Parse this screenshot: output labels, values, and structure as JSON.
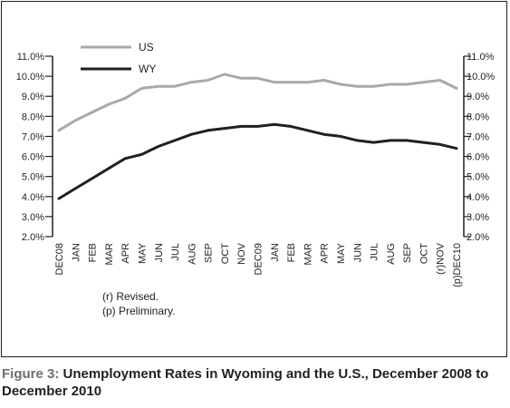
{
  "chart_data": {
    "type": "line",
    "categories": [
      "DEC08",
      "JAN",
      "FEB",
      "MAR",
      "APR",
      "MAY",
      "JUN",
      "JUL",
      "AUG",
      "SEP",
      "OCT",
      "NOV",
      "DEC09",
      "JAN",
      "FEB",
      "MAR",
      "APR",
      "MAY",
      "JUN",
      "JUL",
      "AUG",
      "SEP",
      "OCT",
      "(r)NOV",
      "(p)DEC10"
    ],
    "series": [
      {
        "name": "US",
        "color": "#a7a9ac",
        "values": [
          7.3,
          7.8,
          8.2,
          8.6,
          8.9,
          9.4,
          9.5,
          9.5,
          9.7,
          9.8,
          10.1,
          9.9,
          9.9,
          9.7,
          9.7,
          9.7,
          9.8,
          9.6,
          9.5,
          9.5,
          9.6,
          9.6,
          9.7,
          9.8,
          9.4
        ]
      },
      {
        "name": "WY",
        "color": "#231f20",
        "values": [
          3.9,
          4.4,
          4.9,
          5.4,
          5.9,
          6.1,
          6.5,
          6.8,
          7.1,
          7.3,
          7.4,
          7.5,
          7.5,
          7.6,
          7.5,
          7.3,
          7.1,
          7.0,
          6.8,
          6.7,
          6.8,
          6.8,
          6.7,
          6.6,
          6.4
        ]
      }
    ],
    "y_ticks": [
      "2.0%",
      "3.0%",
      "4.0%",
      "5.0%",
      "6.0%",
      "7.0%",
      "8.0%",
      "9.0%",
      "10.0%",
      "11.0%"
    ],
    "ylim": [
      2,
      11
    ],
    "legend_position": "top-left",
    "grid": false
  },
  "notes": [
    "(r) Revised.",
    "(p) Preliminary."
  ],
  "caption": {
    "lead": "Figure 3:",
    "text": " Unemployment Rates in Wyoming and the U.S., December 2008 to December 2010"
  }
}
